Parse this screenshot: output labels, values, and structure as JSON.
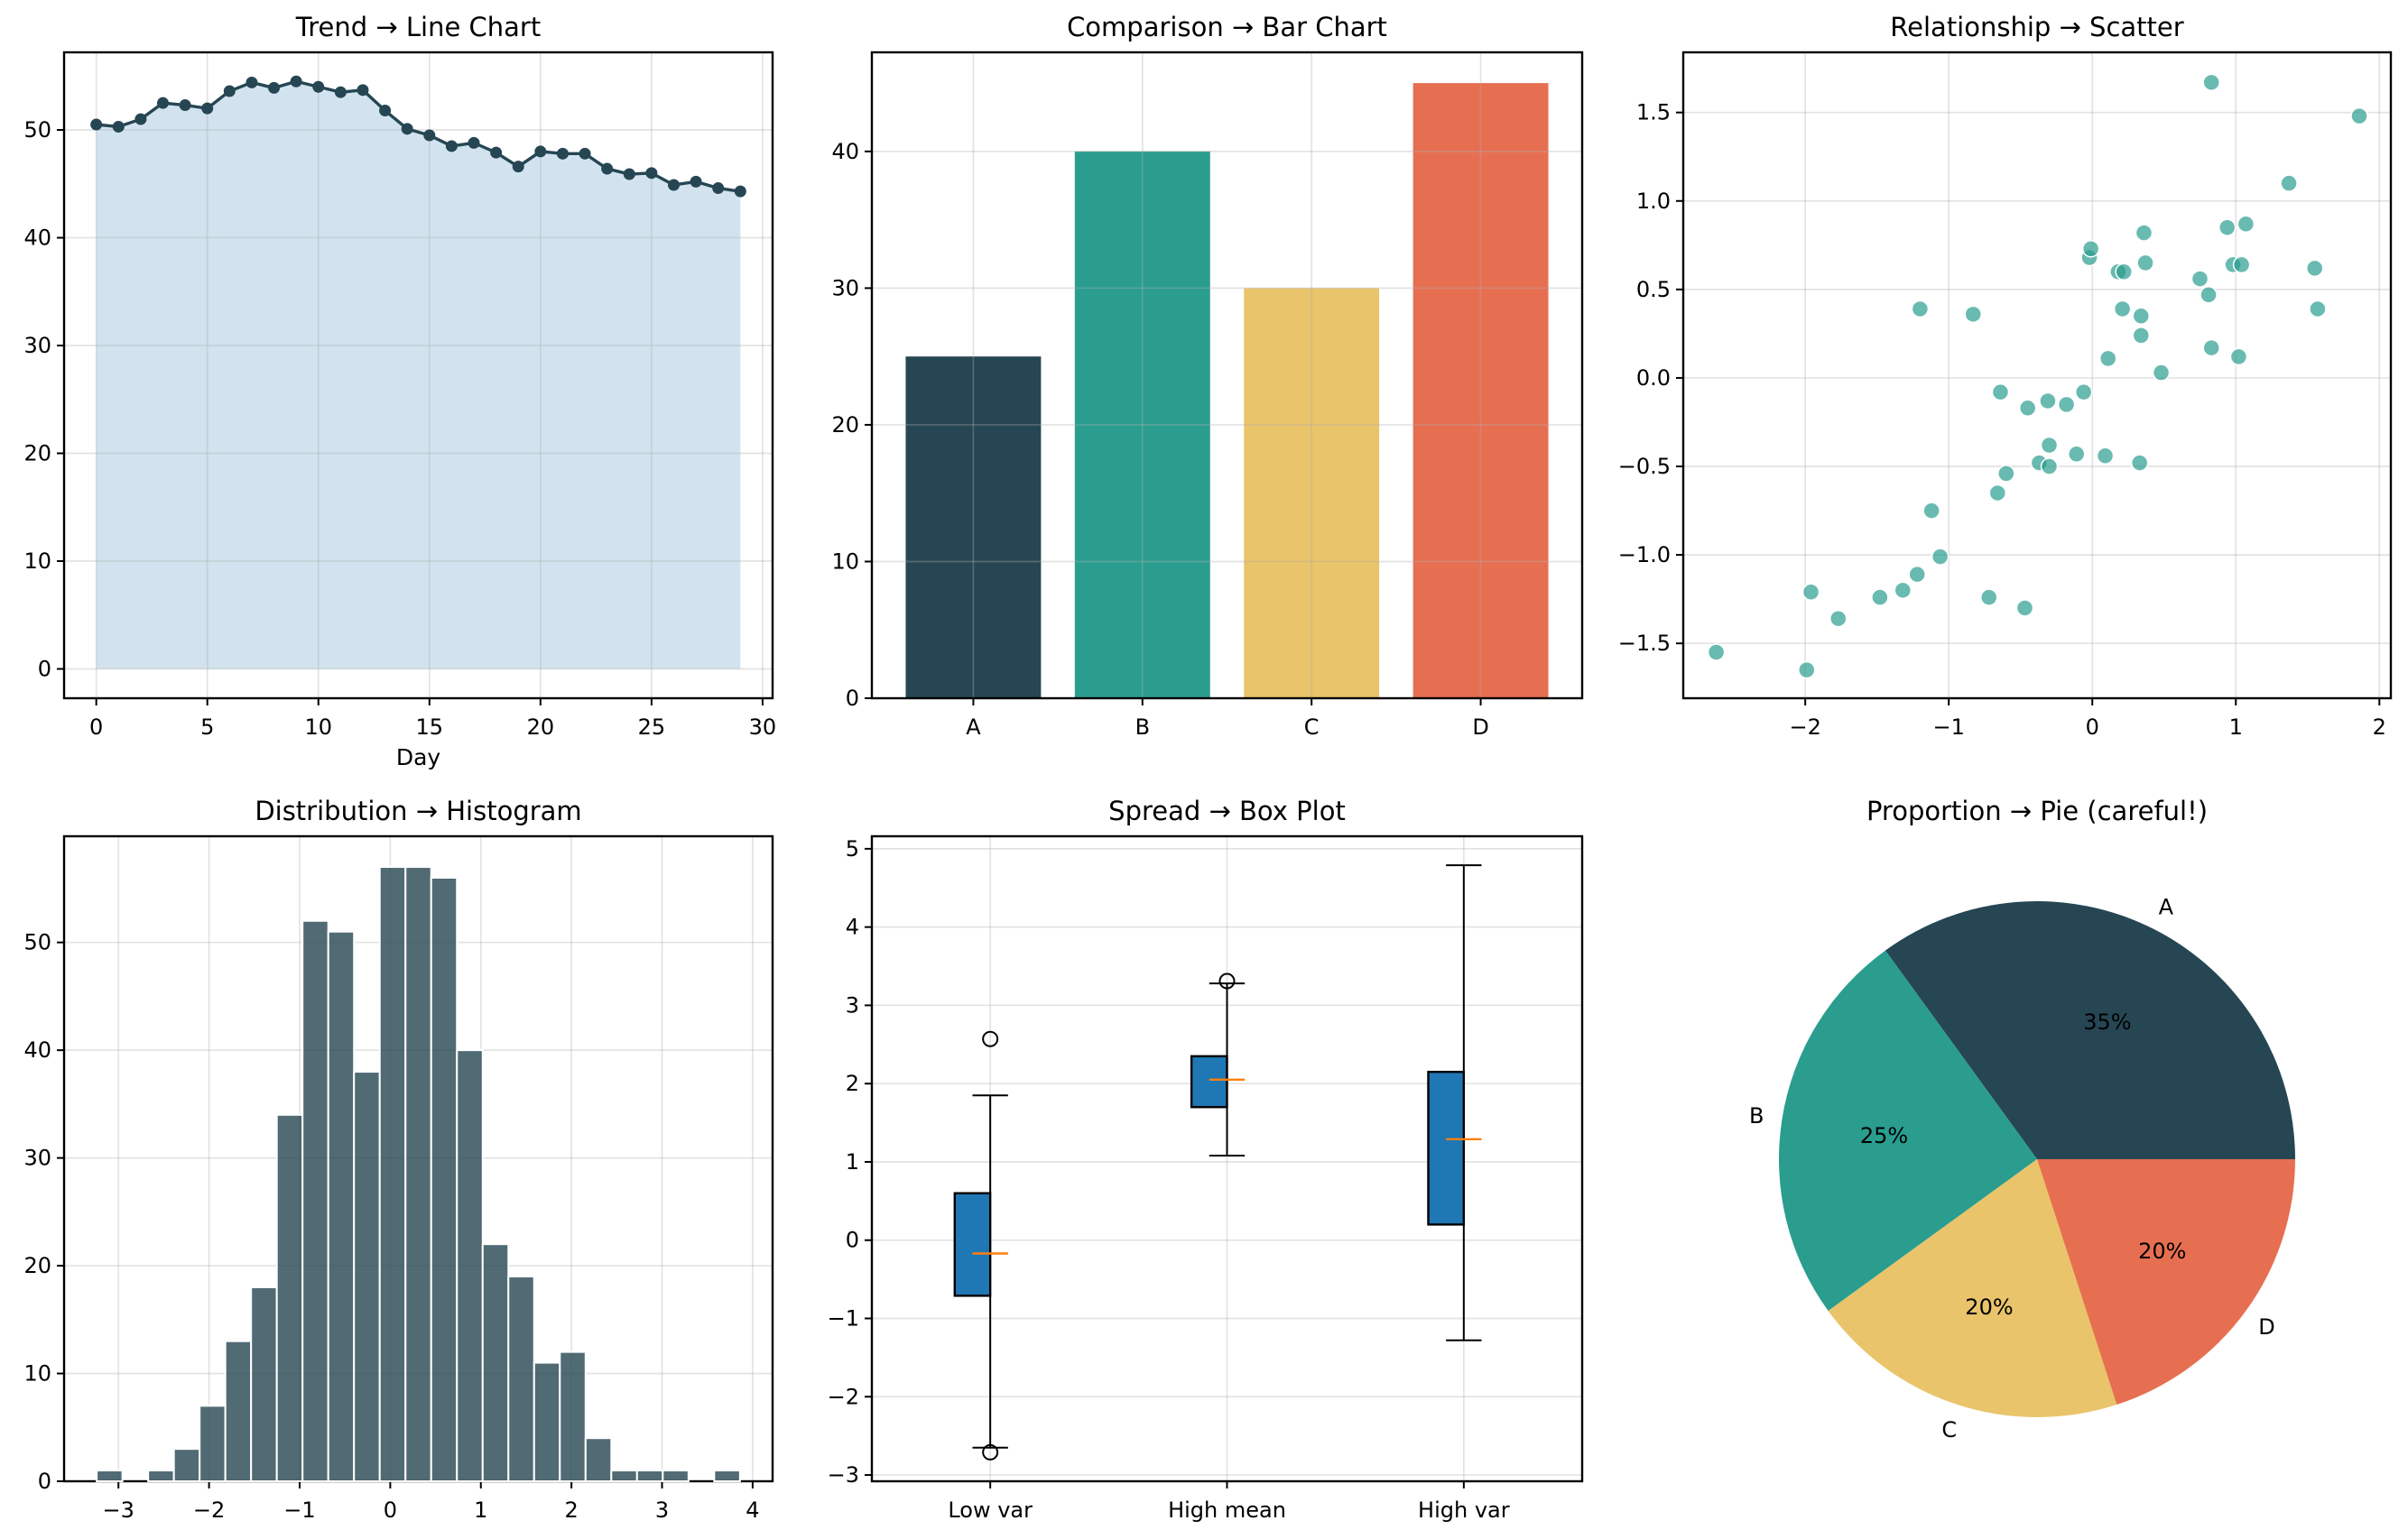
{
  "figure": {
    "panels": [
      "line",
      "bar",
      "scatter",
      "histogram",
      "box",
      "pie"
    ]
  },
  "chart_data": [
    {
      "id": "line",
      "type": "line",
      "title": "Trend → Line Chart",
      "xlabel": "Day",
      "ylabel": "",
      "fill_under": true,
      "color": "#264653",
      "fill_color": "#a6c7df",
      "x": [
        0,
        1,
        2,
        3,
        4,
        5,
        6,
        7,
        8,
        9,
        10,
        11,
        12,
        13,
        14,
        15,
        16,
        17,
        18,
        19,
        20,
        21,
        22,
        23,
        24,
        25,
        26,
        27,
        28,
        29
      ],
      "y": [
        50.5,
        50.3,
        51.0,
        52.5,
        52.3,
        52.0,
        53.6,
        54.4,
        53.9,
        54.5,
        54.0,
        53.5,
        53.7,
        51.8,
        50.1,
        49.5,
        48.5,
        48.8,
        47.9,
        46.6,
        48.0,
        47.8,
        47.8,
        46.4,
        45.9,
        46.0,
        44.9,
        45.2,
        44.6,
        44.3
      ],
      "xlim": [
        -1.45,
        30.45
      ],
      "ylim": [
        -2.72,
        57.2
      ],
      "xticks": [
        0,
        5,
        10,
        15,
        20,
        25,
        30
      ],
      "yticks": [
        0,
        10,
        20,
        30,
        40,
        50
      ],
      "grid": true
    },
    {
      "id": "bar",
      "type": "bar",
      "title": "Comparison → Bar Chart",
      "xlabel": "",
      "ylabel": "",
      "categories": [
        "A",
        "B",
        "C",
        "D"
      ],
      "values": [
        25,
        40,
        30,
        45
      ],
      "colors": [
        "#264653",
        "#2a9d8f",
        "#e9c46a",
        "#e76f51"
      ],
      "ylim": [
        0,
        47.25
      ],
      "yticks": [
        0,
        10,
        20,
        30,
        40
      ],
      "grid": true
    },
    {
      "id": "scatter",
      "type": "scatter",
      "title": "Relationship → Scatter",
      "xlabel": "",
      "ylabel": "",
      "color": "#2a9d8f",
      "points": [
        [
          -2.62,
          -1.55
        ],
        [
          -1.99,
          -1.65
        ],
        [
          -1.96,
          -1.21
        ],
        [
          -1.77,
          -1.36
        ],
        [
          -1.48,
          -1.24
        ],
        [
          -1.32,
          -1.2
        ],
        [
          -1.22,
          -1.11
        ],
        [
          -1.12,
          -0.75
        ],
        [
          -1.06,
          -1.01
        ],
        [
          -1.2,
          0.39
        ],
        [
          -0.83,
          0.36
        ],
        [
          -0.72,
          -1.24
        ],
        [
          -0.66,
          -0.65
        ],
        [
          -0.64,
          -0.08
        ],
        [
          -0.6,
          -0.54
        ],
        [
          -0.47,
          -1.3
        ],
        [
          -0.45,
          -0.17
        ],
        [
          -0.37,
          -0.48
        ],
        [
          -0.3,
          -0.38
        ],
        [
          -0.3,
          -0.5
        ],
        [
          -0.31,
          -0.13
        ],
        [
          -0.18,
          -0.15
        ],
        [
          -0.11,
          -0.43
        ],
        [
          -0.06,
          -0.08
        ],
        [
          -0.02,
          0.68
        ],
        [
          -0.01,
          0.73
        ],
        [
          0.09,
          -0.44
        ],
        [
          0.11,
          0.11
        ],
        [
          0.18,
          0.6
        ],
        [
          0.22,
          0.6
        ],
        [
          0.21,
          0.39
        ],
        [
          0.33,
          -0.48
        ],
        [
          0.34,
          0.35
        ],
        [
          0.34,
          0.24
        ],
        [
          0.36,
          0.82
        ],
        [
          0.37,
          0.65
        ],
        [
          0.48,
          0.03
        ],
        [
          0.75,
          0.56
        ],
        [
          0.81,
          0.47
        ],
        [
          0.83,
          0.17
        ],
        [
          0.83,
          1.67
        ],
        [
          0.94,
          0.85
        ],
        [
          0.98,
          0.64
        ],
        [
          1.02,
          0.12
        ],
        [
          1.04,
          0.64
        ],
        [
          1.07,
          0.87
        ],
        [
          1.37,
          1.1
        ],
        [
          1.55,
          0.62
        ],
        [
          1.57,
          0.39
        ],
        [
          1.86,
          1.48
        ]
      ],
      "xlim": [
        -2.85,
        2.08
      ],
      "ylim": [
        -1.81,
        1.84
      ],
      "xticks": [
        -2,
        -1,
        0,
        1,
        2
      ],
      "yticks": [
        -1.5,
        -1.0,
        -0.5,
        0.0,
        0.5,
        1.0,
        1.5
      ],
      "ytick_labels": [
        "−1.5",
        "−1.0",
        "−0.5",
        "0.0",
        "0.5",
        "1.0",
        "1.5"
      ],
      "xtick_labels": [
        "−2",
        "−1",
        "0",
        "1",
        "2"
      ],
      "grid": true
    },
    {
      "id": "histogram",
      "type": "bar",
      "subtype": "histogram",
      "title": "Distribution → Histogram",
      "xlabel": "",
      "ylabel": "",
      "color": "#264653",
      "bin_start": -3.24,
      "bin_width": 0.284,
      "counts": [
        1,
        0,
        1,
        3,
        7,
        13,
        18,
        34,
        52,
        51,
        38,
        57,
        57,
        56,
        40,
        22,
        19,
        11,
        12,
        4,
        1,
        1,
        1,
        0,
        1
      ],
      "xlim": [
        -3.6,
        4.22
      ],
      "ylim": [
        0,
        59.85
      ],
      "xticks": [
        -3,
        -2,
        -1,
        0,
        1,
        2,
        3,
        4
      ],
      "xtick_labels": [
        "−3",
        "−2",
        "−1",
        "0",
        "1",
        "2",
        "3",
        "4"
      ],
      "yticks": [
        0,
        10,
        20,
        30,
        40,
        50
      ],
      "grid": true
    },
    {
      "id": "box",
      "type": "box",
      "title": "Spread → Box Plot",
      "xlabel": "",
      "ylabel": "",
      "box_color": "#1f77b4",
      "median_color": "#ff7f0e",
      "categories": [
        "Low var",
        "High mean",
        "High var"
      ],
      "boxes": [
        {
          "whisker_low": -2.65,
          "q1": -0.71,
          "median": -0.17,
          "q3": 0.6,
          "whisker_high": 1.85,
          "outliers": [
            2.57,
            -2.71
          ]
        },
        {
          "whisker_low": 1.08,
          "q1": 1.7,
          "median": 2.05,
          "q3": 2.35,
          "whisker_high": 3.28,
          "outliers": [
            3.31
          ]
        },
        {
          "whisker_low": -1.28,
          "q1": 0.2,
          "median": 1.29,
          "q3": 2.15,
          "whisker_high": 4.79,
          "outliers": []
        }
      ],
      "ylim": [
        -3.08,
        5.16
      ],
      "yticks": [
        -3,
        -2,
        -1,
        0,
        1,
        2,
        3,
        4,
        5
      ],
      "ytick_labels": [
        "−3",
        "−2",
        "−1",
        "0",
        "1",
        "2",
        "3",
        "4",
        "5"
      ],
      "grid": true
    },
    {
      "id": "pie",
      "type": "pie",
      "title": "Proportion → Pie (careful!)",
      "labels": [
        "A",
        "B",
        "C",
        "D"
      ],
      "values": [
        35,
        25,
        20,
        20
      ],
      "pct_labels": [
        "35%",
        "25%",
        "20%",
        "20%"
      ],
      "colors": [
        "#264653",
        "#2a9d8f",
        "#e9c46a",
        "#e76f51"
      ],
      "start_angle_deg": 0,
      "direction": "counterclockwise"
    }
  ]
}
